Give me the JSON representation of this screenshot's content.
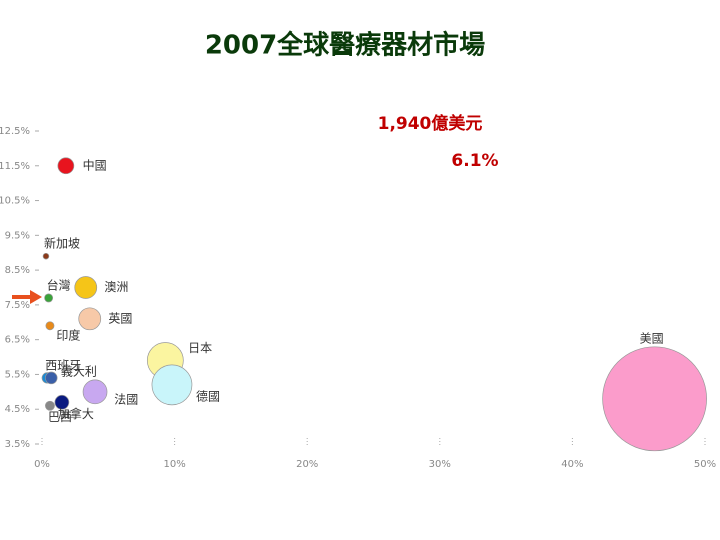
{
  "chart_data": {
    "type": "bubble",
    "title": "2007全球醫療器材市場",
    "annotations": [
      "1,940億美元",
      "6.1%"
    ],
    "labels": [
      "中國",
      "新加坡",
      "台灣",
      "澳洲",
      "英國",
      "印度",
      "日本",
      "德國",
      "西班牙",
      "義大利",
      "法國",
      "加拿大",
      "巴西",
      "美國"
    ],
    "x": [
      1.8,
      0.3,
      0.5,
      3.3,
      3.6,
      0.6,
      9.3,
      9.8,
      0.4,
      0.7,
      4.0,
      1.5,
      0.6,
      46.2
    ],
    "y": [
      11.5,
      8.9,
      7.7,
      8.0,
      7.1,
      6.9,
      5.9,
      5.2,
      5.4,
      5.4,
      5.0,
      4.7,
      4.6,
      4.8
    ],
    "sizes": [
      46,
      6,
      12,
      87,
      87,
      12,
      233,
      287,
      20,
      25,
      103,
      35,
      15,
      1940
    ],
    "colors": [
      "#e8141e",
      "#8b3a1a",
      "#3aa33a",
      "#f5c518",
      "#f7c9a8",
      "#e88a1a",
      "#fbf5a0",
      "#c9f5fa",
      "#1a8ad4",
      "#3a5fa8",
      "#c8a8f0",
      "#0a1a80",
      "#888888",
      "#fb9ccb"
    ],
    "xlim": [
      0,
      50
    ],
    "ylim": [
      3.5,
      12.5
    ],
    "xticks": [
      {
        "value": 0,
        "label": "0%"
      },
      {
        "value": 10,
        "label": "10%"
      },
      {
        "value": 20,
        "label": "20%"
      },
      {
        "value": 30,
        "label": "30%"
      },
      {
        "value": 40,
        "label": "40%"
      },
      {
        "value": 50,
        "label": "50%"
      }
    ],
    "yticks": [
      {
        "value": 3.5,
        "label": "3.5%"
      },
      {
        "value": 4.5,
        "label": "4.5%"
      },
      {
        "value": 5.5,
        "label": "5.5%"
      },
      {
        "value": 6.5,
        "label": "6.5%"
      },
      {
        "value": 7.5,
        "label": "7.5%"
      },
      {
        "value": 8.5,
        "label": "8.5%"
      },
      {
        "value": 9.5,
        "label": "9.5%"
      },
      {
        "value": 10.5,
        "label": "10.5%"
      },
      {
        "value": 11.5,
        "label": "11.5%"
      },
      {
        "value": 12.5,
        "label": "12.5%"
      }
    ]
  }
}
